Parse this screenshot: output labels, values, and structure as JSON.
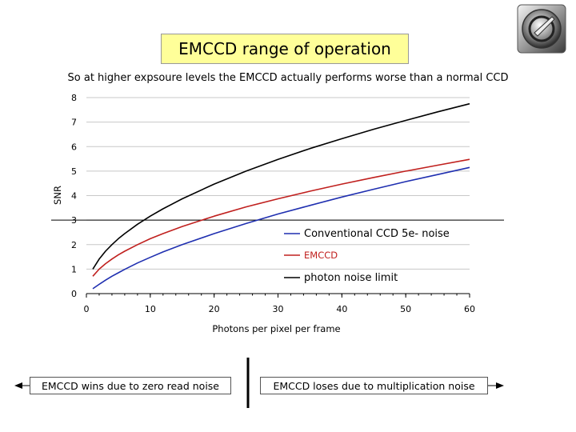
{
  "slide": {
    "title": "EMCCD range of operation",
    "subtitle": "So at higher expsoure levels the EMCCD actually performs worse than a normal CCD",
    "left_label": "EMCCD wins due to zero read noise",
    "right_label": "EMCCD  loses due to multiplication noise"
  },
  "chart_data": {
    "type": "line",
    "xlabel": "Photons per pixel per frame",
    "ylabel": "SNR",
    "xlim": [
      0,
      60
    ],
    "ylim": [
      0,
      8
    ],
    "x_ticks": [
      "0",
      "10",
      "20",
      "30",
      "40",
      "50",
      "60"
    ],
    "y_ticks": [
      "0",
      "1",
      "2",
      "3",
      "4",
      "5",
      "6",
      "7",
      "8"
    ],
    "grid": "horizontal",
    "legend_position": "bottom-right",
    "reference_line_y": 3,
    "series": [
      {
        "name": "Conventional CCD 5e- noise",
        "color": "#1f2fb0",
        "x": [
          1,
          2,
          3,
          4,
          5,
          6,
          8,
          10,
          12,
          15,
          20,
          25,
          30,
          35,
          40,
          45,
          50,
          55,
          60
        ],
        "y": [
          0.2,
          0.38,
          0.55,
          0.71,
          0.85,
          0.99,
          1.25,
          1.48,
          1.7,
          2.0,
          2.45,
          2.86,
          3.25,
          3.6,
          3.94,
          4.26,
          4.57,
          4.86,
          5.15
        ]
      },
      {
        "name": "EMCCD",
        "color": "#c0201e",
        "x": [
          1,
          2,
          3,
          4,
          5,
          6,
          8,
          10,
          12,
          15,
          20,
          25,
          30,
          35,
          40,
          45,
          50,
          55,
          60
        ],
        "y": [
          0.71,
          1.0,
          1.22,
          1.41,
          1.58,
          1.73,
          2.0,
          2.24,
          2.45,
          2.74,
          3.16,
          3.54,
          3.87,
          4.18,
          4.47,
          4.74,
          5.0,
          5.24,
          5.48
        ]
      },
      {
        "name": "photon noise limit",
        "color": "#000000",
        "x": [
          1,
          2,
          3,
          4,
          5,
          6,
          8,
          10,
          12,
          15,
          20,
          25,
          30,
          35,
          40,
          45,
          50,
          55,
          60
        ],
        "y": [
          1.0,
          1.41,
          1.73,
          2.0,
          2.24,
          2.45,
          2.83,
          3.16,
          3.46,
          3.87,
          4.47,
          5.0,
          5.48,
          5.92,
          6.32,
          6.71,
          7.07,
          7.42,
          7.75
        ]
      }
    ]
  },
  "icons": {
    "logo": "lens-logo-icon",
    "left_arrow": "arrow-left-icon",
    "right_arrow": "arrow-right-icon"
  }
}
